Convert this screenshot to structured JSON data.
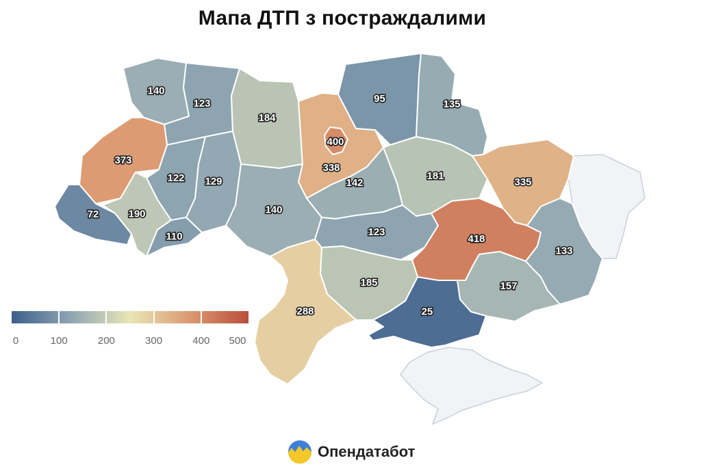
{
  "title": "Мапа ДТП з постраждалими",
  "brand": {
    "name": "Опендатабот",
    "logo_icon": "opendatabot-logo-icon"
  },
  "colors": {
    "scale": [
      "#3d5f8c",
      "#8fa6b2",
      "#e9e6b7",
      "#dc9a72",
      "#b94d3c"
    ],
    "no_data": "#f2f3f6"
  },
  "legend": {
    "ticks": [
      "0",
      "100",
      "200",
      "300",
      "400",
      "500"
    ],
    "min": 0,
    "max": 500
  },
  "chart_data": {
    "type": "choropleth",
    "title": "Мапа ДТП з постраждалими",
    "scale_range": [
      0,
      500
    ],
    "regions": [
      {
        "id": "volyn",
        "value": 140
      },
      {
        "id": "rivne",
        "value": 123
      },
      {
        "id": "lviv",
        "value": 373
      },
      {
        "id": "ternopil",
        "value": 122
      },
      {
        "id": "khmelnytskyi",
        "value": 129
      },
      {
        "id": "zakarpattia",
        "value": 72
      },
      {
        "id": "ivano-frankivsk",
        "value": 190
      },
      {
        "id": "chernivtsi",
        "value": 110
      },
      {
        "id": "zhytomyr",
        "value": 184
      },
      {
        "id": "kyiv-oblast",
        "value": 338
      },
      {
        "id": "kyiv-city",
        "value": 400
      },
      {
        "id": "chernihiv",
        "value": 95
      },
      {
        "id": "sumy",
        "value": 135
      },
      {
        "id": "poltava",
        "value": 181
      },
      {
        "id": "kharkiv",
        "value": 335
      },
      {
        "id": "vinnytsia",
        "value": 140
      },
      {
        "id": "cherkasy",
        "value": 142
      },
      {
        "id": "kirovohrad",
        "value": 123
      },
      {
        "id": "dnipropetrovsk",
        "value": 418
      },
      {
        "id": "donetsk",
        "value": 133
      },
      {
        "id": "zaporizhzhia",
        "value": 157
      },
      {
        "id": "kherson",
        "value": 25
      },
      {
        "id": "mykolaiv",
        "value": 185
      },
      {
        "id": "odesa",
        "value": 288
      }
    ]
  }
}
